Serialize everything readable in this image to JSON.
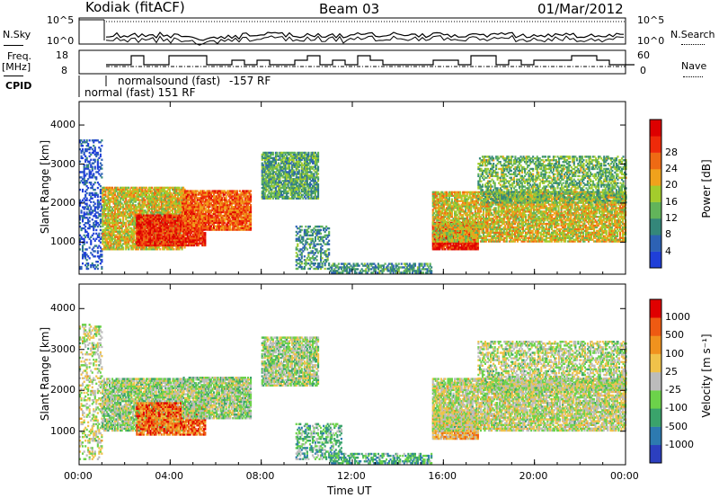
{
  "header": {
    "station": "Kodiak (fitACF)",
    "beam": "Beam 03",
    "date": "01/Mar/2012"
  },
  "side_labels": {
    "nsky": "N.Sky",
    "freq": "Freq.",
    "freq_unit": "[MHz]",
    "cpid": "CPID",
    "nsearch": "N.Search",
    "nave": "Nave"
  },
  "noise_panel": {
    "left_ticks": [
      "10^5",
      "10^0"
    ],
    "right_ticks": [
      "10^5",
      "10^0"
    ]
  },
  "freq_panel": {
    "left_ticks": [
      "18",
      "8"
    ],
    "right_ticks": [
      "60",
      "0"
    ]
  },
  "cpid_labels": {
    "line1": "normalsound (fast)",
    "line1b": "-157 RF",
    "line2": "normal (fast) 151 RF"
  },
  "chart_data": [
    {
      "type": "heatmap",
      "name": "power",
      "xlabel": "Time UT",
      "ylabel": "Slant Range [km]",
      "x_ticks": [
        "00:00",
        "04:00",
        "08:00",
        "12:00",
        "16:00",
        "20:00",
        "00:00"
      ],
      "xlim": [
        0,
        24
      ],
      "ylim": [
        180,
        4600
      ],
      "y_ticks": [
        1000,
        2000,
        3000,
        4000
      ],
      "colorbar_label": "Power [dB]",
      "colorbar_ticks": [
        4,
        8,
        12,
        16,
        20,
        24,
        28
      ],
      "colorbar_colors": [
        "#1f3fd8",
        "#2d62b4",
        "#34877a",
        "#62b45a",
        "#a3cc2c",
        "#f0a21c",
        "#ee6a14",
        "#ee2a0a",
        "#dd0000"
      ],
      "regions": [
        {
          "t0": 0.0,
          "t1": 1.0,
          "r0": 300,
          "r1": 3600,
          "level": 0.1,
          "density": 0.35
        },
        {
          "t0": 1.0,
          "t1": 4.6,
          "r0": 800,
          "r1": 2400,
          "level": 0.55,
          "density": 0.85
        },
        {
          "t0": 2.5,
          "t1": 5.5,
          "r0": 900,
          "r1": 1700,
          "level": 0.85,
          "density": 0.9
        },
        {
          "t0": 4.5,
          "t1": 7.5,
          "r0": 1300,
          "r1": 2300,
          "level": 0.75,
          "density": 0.9
        },
        {
          "t0": 8.0,
          "t1": 10.5,
          "r0": 2100,
          "r1": 3300,
          "level": 0.35,
          "density": 0.8
        },
        {
          "t0": 9.5,
          "t1": 11.0,
          "r0": 300,
          "r1": 1400,
          "level": 0.3,
          "density": 0.45
        },
        {
          "t0": 11.0,
          "t1": 15.5,
          "r0": 200,
          "r1": 450,
          "level": 0.3,
          "density": 0.6
        },
        {
          "t0": 15.5,
          "t1": 17.5,
          "r0": 800,
          "r1": 1500,
          "level": 0.9,
          "density": 0.95
        },
        {
          "t0": 15.5,
          "t1": 24.0,
          "r0": 1000,
          "r1": 2300,
          "level": 0.55,
          "density": 0.8
        },
        {
          "t0": 17.5,
          "t1": 24.0,
          "r0": 2000,
          "r1": 3200,
          "level": 0.4,
          "density": 0.55
        }
      ]
    },
    {
      "type": "heatmap",
      "name": "velocity",
      "xlabel": "Time UT",
      "ylabel": "Slant Range [km]",
      "x_ticks": [
        "00:00",
        "04:00",
        "08:00",
        "12:00",
        "16:00",
        "20:00",
        "00:00"
      ],
      "xlim": [
        0,
        24
      ],
      "ylim": [
        180,
        4600
      ],
      "y_ticks": [
        1000,
        2000,
        3000,
        4000
      ],
      "colorbar_label": "Velocity [m s⁻¹]",
      "colorbar_ticks": [
        "1000",
        "500",
        "100",
        "25",
        "-25",
        "-100",
        "-500",
        "-1000"
      ],
      "colorbar_colors": [
        "#2c3fbf",
        "#2d7ab0",
        "#3aa36b",
        "#6cd24a",
        "#bcbcbc",
        "#f0c24a",
        "#f0921e",
        "#ee5a12",
        "#e00000"
      ],
      "regions": [
        {
          "t0": 0.0,
          "t1": 1.0,
          "r0": 300,
          "r1": 3600,
          "level": 0.5,
          "density": 0.35
        },
        {
          "t0": 1.0,
          "t1": 4.5,
          "r0": 1000,
          "r1": 2300,
          "level": 0.45,
          "density": 0.85
        },
        {
          "t0": 2.5,
          "t1": 5.5,
          "r0": 900,
          "r1": 1700,
          "level": 0.8,
          "density": 0.8
        },
        {
          "t0": 4.5,
          "t1": 7.5,
          "r0": 1300,
          "r1": 2300,
          "level": 0.45,
          "density": 0.85
        },
        {
          "t0": 8.0,
          "t1": 10.5,
          "r0": 2100,
          "r1": 3300,
          "level": 0.45,
          "density": 0.8
        },
        {
          "t0": 9.5,
          "t1": 11.5,
          "r0": 300,
          "r1": 1200,
          "level": 0.35,
          "density": 0.45
        },
        {
          "t0": 11.0,
          "t1": 15.5,
          "r0": 200,
          "r1": 450,
          "level": 0.3,
          "density": 0.55
        },
        {
          "t0": 15.5,
          "t1": 17.5,
          "r0": 800,
          "r1": 1500,
          "level": 0.65,
          "density": 0.9
        },
        {
          "t0": 15.5,
          "t1": 24.0,
          "r0": 1000,
          "r1": 2300,
          "level": 0.5,
          "density": 0.8
        },
        {
          "t0": 17.5,
          "t1": 24.0,
          "r0": 2000,
          "r1": 3200,
          "level": 0.48,
          "density": 0.55
        }
      ]
    }
  ]
}
